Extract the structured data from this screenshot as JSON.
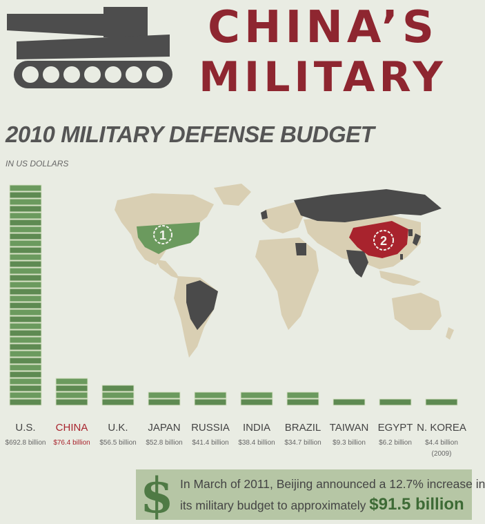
{
  "header": {
    "title_line_1": "CHINA’S",
    "title_line_2": "MILITARY"
  },
  "section": {
    "heading": "2010 MILITARY DEFENSE BUDGET",
    "subheading": "IN US DOLLARS"
  },
  "colors": {
    "title_red": "#8e2630",
    "money_green": "#6b9a5e",
    "china_red": "#a8232d",
    "dark_country": "#4a4a4a",
    "land": "#d9cfb3",
    "background": "#e9ece3"
  },
  "chart_data": {
    "type": "bar",
    "title": "2010 MILITARY DEFENSE BUDGET",
    "subtitle": "IN US DOLLARS",
    "categories": [
      "U.S.",
      "CHINA",
      "U.K.",
      "JAPAN",
      "RUSSIA",
      "INDIA",
      "BRAZIL",
      "TAIWAN",
      "EGYPT",
      "N. KOREA"
    ],
    "values": [
      692.8,
      76.4,
      56.5,
      52.8,
      41.4,
      38.4,
      34.7,
      9.3,
      6.2,
      4.4
    ],
    "value_labels": [
      "$692.8 billion",
      "$76.4 billion",
      "$56.5 billion",
      "$52.8 billion",
      "$41.4 billion",
      "$38.4 billion",
      "$34.7 billion",
      "$9.3 billion",
      "$6.2 billion",
      "$4.4 billion"
    ],
    "notes": [
      "",
      "",
      "",
      "",
      "",
      "",
      "",
      "",
      "",
      "(2009)"
    ],
    "highlight_index": 1,
    "units": "billion US dollars"
  },
  "map": {
    "markers": [
      {
        "country": "U.S.",
        "rank": "1"
      },
      {
        "country": "China",
        "rank": "2"
      }
    ]
  },
  "footnote": {
    "line_1": "In March of 2011, Beijing announced a 12.7% increase in",
    "line_2_prefix": "its military budget to approximately ",
    "highlight": "$91.5 billion",
    "dollar_symbol": "$"
  }
}
